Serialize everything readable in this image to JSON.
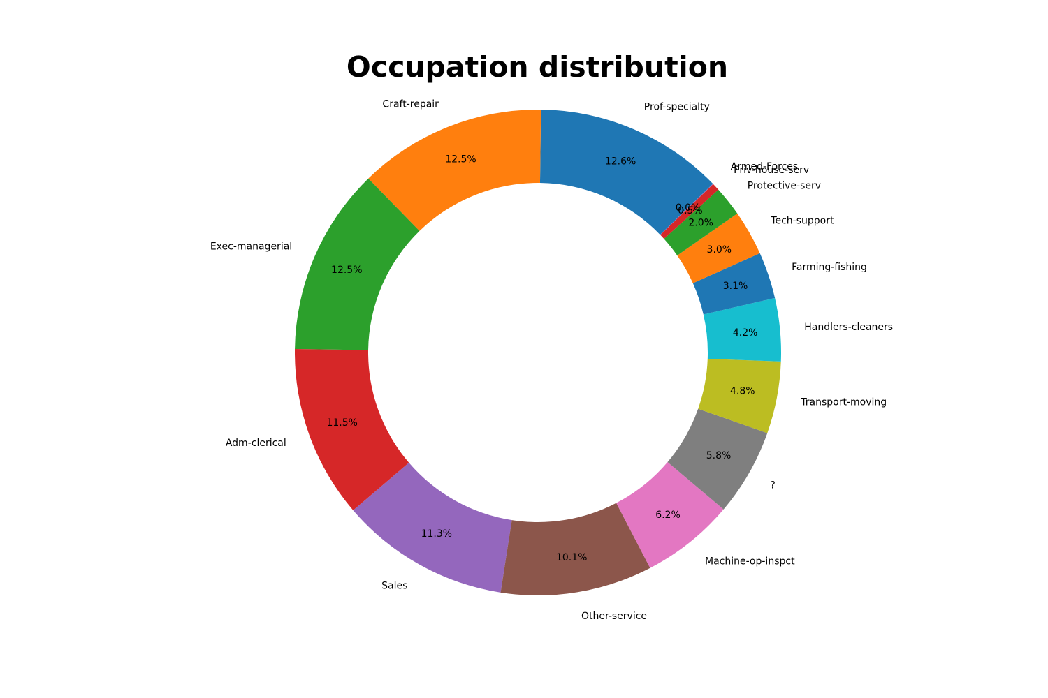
{
  "chart_data": {
    "type": "pie",
    "variant": "donut",
    "title": "Occupation distribution",
    "start_angle_deg": 44,
    "direction": "counterclockwise",
    "legend": "none",
    "slices": [
      {
        "label": "Prof-specialty",
        "value": 12.6,
        "pct_label": "12.6%",
        "color": "#1f77b4"
      },
      {
        "label": "Craft-repair",
        "value": 12.5,
        "pct_label": "12.5%",
        "color": "#ff7f0e"
      },
      {
        "label": "Exec-managerial",
        "value": 12.5,
        "pct_label": "12.5%",
        "color": "#2ca02c"
      },
      {
        "label": "Adm-clerical",
        "value": 11.5,
        "pct_label": "11.5%",
        "color": "#d62728"
      },
      {
        "label": "Sales",
        "value": 11.3,
        "pct_label": "11.3%",
        "color": "#9467bd"
      },
      {
        "label": "Other-service",
        "value": 10.1,
        "pct_label": "10.1%",
        "color": "#8c564b"
      },
      {
        "label": "Machine-op-inspct",
        "value": 6.2,
        "pct_label": "6.2%",
        "color": "#e377c2"
      },
      {
        "label": "?",
        "value": 5.8,
        "pct_label": "5.8%",
        "color": "#7f7f7f"
      },
      {
        "label": "Transport-moving",
        "value": 4.8,
        "pct_label": "4.8%",
        "color": "#bcbd22"
      },
      {
        "label": "Handlers-cleaners",
        "value": 4.2,
        "pct_label": "4.2%",
        "color": "#17becf"
      },
      {
        "label": "Farming-fishing",
        "value": 3.1,
        "pct_label": "3.1%",
        "color": "#1f77b4"
      },
      {
        "label": "Tech-support",
        "value": 3.0,
        "pct_label": "3.0%",
        "color": "#ff7f0e"
      },
      {
        "label": "Protective-serv",
        "value": 2.0,
        "pct_label": "2.0%",
        "color": "#2ca02c"
      },
      {
        "label": "Priv-house-serv",
        "value": 0.5,
        "pct_label": "0.5%",
        "color": "#d62728"
      },
      {
        "label": "Armed-Forces",
        "value": 0.03,
        "pct_label": "0.0%",
        "color": "#9467bd"
      }
    ]
  }
}
